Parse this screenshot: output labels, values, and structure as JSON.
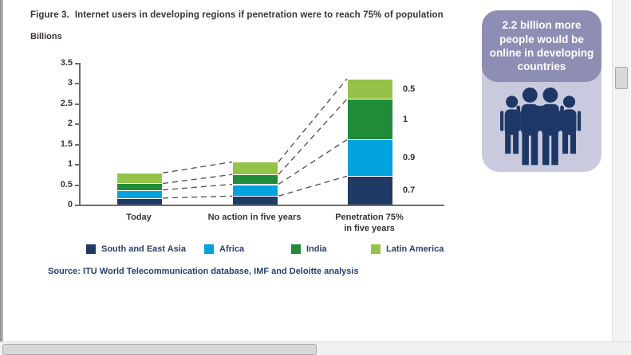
{
  "figure": {
    "label": "Figure 3.",
    "title": "Internet users in developing regions if penetration were to reach 75% of population",
    "units_label": "Billions",
    "source": "Source: ITU World Telecommunication database, IMF and Deloitte analysis"
  },
  "chart_data": {
    "type": "bar",
    "stacked": true,
    "title": "Internet users in developing regions if penetration were to reach 75% of population",
    "ylabel": "Billions",
    "ylim": [
      0,
      3.5
    ],
    "ytick_labels": [
      "0",
      "0.5",
      "1",
      "1.5",
      "2",
      "2.5",
      "3",
      "3.5"
    ],
    "grid": false,
    "legend_position": "bottom",
    "connector_style": "dashed",
    "categories": [
      [
        "Today"
      ],
      [
        "No action in five years"
      ],
      [
        "Penetration 75%",
        "in five years"
      ]
    ],
    "series": [
      {
        "name": "South and East Asia",
        "color": "#1f3a64",
        "values": [
          0.16,
          0.21,
          0.7
        ]
      },
      {
        "name": "Africa",
        "color": "#00a3dc",
        "values": [
          0.2,
          0.29,
          0.9
        ]
      },
      {
        "name": "India",
        "color": "#208c3a",
        "values": [
          0.16,
          0.24,
          1.0
        ]
      },
      {
        "name": "Latin America",
        "color": "#95c34a",
        "values": [
          0.26,
          0.31,
          0.5
        ]
      }
    ],
    "bar_value_labels": {
      "category_index": 2,
      "labels": [
        "0.7",
        "0.9",
        "1",
        "0.5"
      ]
    },
    "totals": [
      0.78,
      1.05,
      3.1
    ]
  },
  "callout": {
    "text": "2.2 billion more people would be online in developing countries",
    "icon": "people-group-icon",
    "colors": {
      "header_bg": "#8e8eb4",
      "body_bg": "#cacade",
      "icon": "#1d3866",
      "text": "#ffffff"
    }
  },
  "window": {
    "vertical_scrollbar": true,
    "horizontal_scrollbar": true
  }
}
